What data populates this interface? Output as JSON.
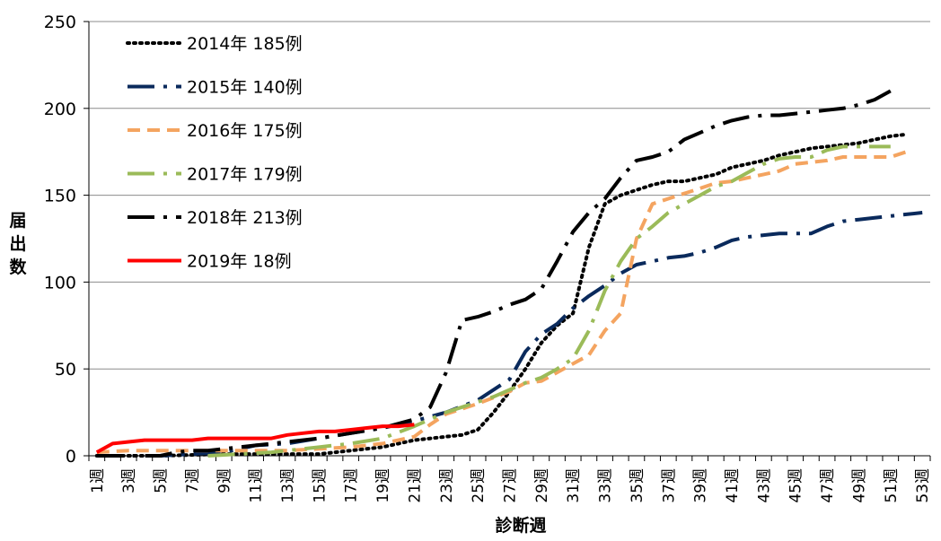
{
  "chart_data": {
    "type": "line",
    "title": "",
    "xlabel": "診断週",
    "ylabel": "届出数",
    "ylim": [
      0,
      250
    ],
    "yticks": [
      0,
      50,
      100,
      150,
      200,
      250
    ],
    "grid": true,
    "legend_position": "top-left",
    "x_tick_labels": [
      "1週",
      "3週",
      "5週",
      "7週",
      "9週",
      "11週",
      "13週",
      "15週",
      "17週",
      "19週",
      "21週",
      "23週",
      "25週",
      "27週",
      "29週",
      "31週",
      "33週",
      "35週",
      "37週",
      "39週",
      "41週",
      "43週",
      "45週",
      "47週",
      "49週",
      "51週",
      "53週"
    ],
    "series": [
      {
        "name": "2014年 185例",
        "color": "#000000",
        "style": "dotted",
        "points": [
          [
            1,
            0
          ],
          [
            5,
            0
          ],
          [
            9,
            1
          ],
          [
            11,
            1
          ],
          [
            13,
            1
          ],
          [
            15,
            1
          ],
          [
            17,
            3
          ],
          [
            19,
            5
          ],
          [
            21,
            9
          ],
          [
            23,
            11
          ],
          [
            24,
            12
          ],
          [
            25,
            15
          ],
          [
            26,
            25
          ],
          [
            27,
            37
          ],
          [
            28,
            50
          ],
          [
            29,
            65
          ],
          [
            30,
            75
          ],
          [
            31,
            82
          ],
          [
            32,
            120
          ],
          [
            33,
            145
          ],
          [
            34,
            150
          ],
          [
            35,
            153
          ],
          [
            36,
            156
          ],
          [
            37,
            158
          ],
          [
            38,
            158
          ],
          [
            39,
            160
          ],
          [
            40,
            162
          ],
          [
            41,
            166
          ],
          [
            42,
            168
          ],
          [
            43,
            170
          ],
          [
            44,
            173
          ],
          [
            45,
            175
          ],
          [
            46,
            177
          ],
          [
            47,
            178
          ],
          [
            48,
            179
          ],
          [
            49,
            180
          ],
          [
            50,
            182
          ],
          [
            51,
            184
          ],
          [
            52,
            185
          ]
        ]
      },
      {
        "name": "2015年 140例",
        "color": "#0a2a5c",
        "style": "dash-dot",
        "points": [
          [
            1,
            0
          ],
          [
            3,
            0
          ],
          [
            5,
            0
          ],
          [
            7,
            1
          ],
          [
            9,
            2
          ],
          [
            10,
            4
          ],
          [
            11,
            6
          ],
          [
            13,
            7
          ],
          [
            15,
            10
          ],
          [
            17,
            13
          ],
          [
            19,
            16
          ],
          [
            21,
            20
          ],
          [
            23,
            25
          ],
          [
            25,
            32
          ],
          [
            27,
            44
          ],
          [
            28,
            60
          ],
          [
            29,
            70
          ],
          [
            30,
            76
          ],
          [
            31,
            85
          ],
          [
            32,
            92
          ],
          [
            33,
            98
          ],
          [
            34,
            105
          ],
          [
            35,
            110
          ],
          [
            36,
            112
          ],
          [
            37,
            114
          ],
          [
            38,
            115
          ],
          [
            39,
            117
          ],
          [
            40,
            120
          ],
          [
            41,
            124
          ],
          [
            42,
            126
          ],
          [
            43,
            127
          ],
          [
            44,
            128
          ],
          [
            45,
            128
          ],
          [
            46,
            128
          ],
          [
            47,
            132
          ],
          [
            48,
            135
          ],
          [
            49,
            136
          ],
          [
            50,
            137
          ],
          [
            51,
            138
          ],
          [
            52,
            139
          ],
          [
            53,
            140
          ]
        ]
      },
      {
        "name": "2016年 175例",
        "color": "#f4a460",
        "style": "dashed",
        "points": [
          [
            1,
            2
          ],
          [
            3,
            3
          ],
          [
            5,
            3
          ],
          [
            7,
            3
          ],
          [
            9,
            3
          ],
          [
            11,
            3
          ],
          [
            13,
            3
          ],
          [
            15,
            4
          ],
          [
            17,
            5
          ],
          [
            19,
            7
          ],
          [
            21,
            11
          ],
          [
            22,
            18
          ],
          [
            23,
            24
          ],
          [
            25,
            30
          ],
          [
            27,
            37
          ],
          [
            28,
            42
          ],
          [
            29,
            43
          ],
          [
            30,
            48
          ],
          [
            31,
            53
          ],
          [
            32,
            58
          ],
          [
            33,
            72
          ],
          [
            34,
            82
          ],
          [
            35,
            125
          ],
          [
            36,
            145
          ],
          [
            37,
            148
          ],
          [
            38,
            151
          ],
          [
            39,
            154
          ],
          [
            40,
            157
          ],
          [
            41,
            158
          ],
          [
            42,
            160
          ],
          [
            43,
            162
          ],
          [
            44,
            164
          ],
          [
            45,
            168
          ],
          [
            46,
            169
          ],
          [
            47,
            170
          ],
          [
            48,
            172
          ],
          [
            49,
            172
          ],
          [
            50,
            172
          ],
          [
            51,
            172
          ],
          [
            52,
            175
          ]
        ]
      },
      {
        "name": "2017年 179例",
        "color": "#9bbb59",
        "style": "dash-dot",
        "points": [
          [
            8,
            0
          ],
          [
            10,
            1
          ],
          [
            12,
            2
          ],
          [
            14,
            4
          ],
          [
            15,
            5
          ],
          [
            17,
            7
          ],
          [
            19,
            10
          ],
          [
            21,
            17
          ],
          [
            23,
            25
          ],
          [
            24,
            28
          ],
          [
            25,
            31
          ],
          [
            26,
            34
          ],
          [
            27,
            38
          ],
          [
            28,
            42
          ],
          [
            29,
            45
          ],
          [
            30,
            50
          ],
          [
            31,
            56
          ],
          [
            32,
            72
          ],
          [
            33,
            95
          ],
          [
            34,
            112
          ],
          [
            35,
            125
          ],
          [
            36,
            132
          ],
          [
            37,
            140
          ],
          [
            38,
            145
          ],
          [
            39,
            150
          ],
          [
            40,
            155
          ],
          [
            41,
            158
          ],
          [
            42,
            163
          ],
          [
            43,
            168
          ],
          [
            44,
            171
          ],
          [
            45,
            172
          ],
          [
            46,
            172
          ],
          [
            47,
            176
          ],
          [
            48,
            178
          ],
          [
            49,
            178
          ],
          [
            50,
            178
          ],
          [
            51,
            178
          ]
        ]
      },
      {
        "name": "2018年 213例",
        "color": "#000000",
        "style": "dash-dot",
        "points": [
          [
            1,
            0
          ],
          [
            5,
            0
          ],
          [
            6,
            2
          ],
          [
            7,
            3
          ],
          [
            8,
            3
          ],
          [
            9,
            4
          ],
          [
            11,
            6
          ],
          [
            13,
            8
          ],
          [
            15,
            10
          ],
          [
            17,
            13
          ],
          [
            19,
            16
          ],
          [
            21,
            21
          ],
          [
            22,
            28
          ],
          [
            23,
            48
          ],
          [
            24,
            78
          ],
          [
            25,
            80
          ],
          [
            26,
            83
          ],
          [
            27,
            87
          ],
          [
            28,
            90
          ],
          [
            29,
            96
          ],
          [
            30,
            112
          ],
          [
            31,
            129
          ],
          [
            32,
            140
          ],
          [
            33,
            148
          ],
          [
            34,
            160
          ],
          [
            35,
            170
          ],
          [
            36,
            172
          ],
          [
            37,
            175
          ],
          [
            38,
            182
          ],
          [
            39,
            186
          ],
          [
            40,
            190
          ],
          [
            41,
            193
          ],
          [
            42,
            195
          ],
          [
            43,
            196
          ],
          [
            44,
            196
          ],
          [
            45,
            197
          ],
          [
            46,
            198
          ],
          [
            47,
            199
          ],
          [
            48,
            200
          ],
          [
            49,
            202
          ],
          [
            50,
            205
          ],
          [
            51,
            210
          ]
        ]
      },
      {
        "name": "2019年 18例",
        "color": "#ff0000",
        "style": "solid",
        "points": [
          [
            1,
            2
          ],
          [
            2,
            7
          ],
          [
            3,
            8
          ],
          [
            4,
            9
          ],
          [
            5,
            9
          ],
          [
            6,
            9
          ],
          [
            7,
            9
          ],
          [
            8,
            10
          ],
          [
            9,
            10
          ],
          [
            10,
            10
          ],
          [
            11,
            10
          ],
          [
            12,
            10
          ],
          [
            13,
            12
          ],
          [
            14,
            13
          ],
          [
            15,
            14
          ],
          [
            16,
            14
          ],
          [
            17,
            15
          ],
          [
            18,
            16
          ],
          [
            19,
            17
          ],
          [
            20,
            17
          ],
          [
            21,
            18
          ]
        ]
      }
    ]
  }
}
